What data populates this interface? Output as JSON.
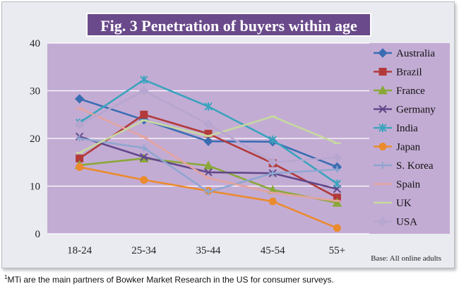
{
  "chart_data": {
    "type": "line",
    "title": "Fig. 3 Penetration of buyers within age",
    "categories": [
      "18-24",
      "25-34",
      "35-44",
      "45-54",
      "55+"
    ],
    "ylim": [
      0,
      40
    ],
    "yticks": [
      0,
      10,
      20,
      30,
      40
    ],
    "grid": true,
    "legend_position": "right",
    "note": "Base: All online adults",
    "series": [
      {
        "name": "Australia",
        "color": "#3b6db3",
        "marker": "diamond",
        "values": [
          28.3,
          23.9,
          19.4,
          19.3,
          14.0
        ]
      },
      {
        "name": "Brazil",
        "color": "#b23a3a",
        "marker": "square",
        "values": [
          15.8,
          25.0,
          21.0,
          14.8,
          7.6
        ]
      },
      {
        "name": "France",
        "color": "#8aa839",
        "marker": "triangle",
        "values": [
          14.4,
          15.8,
          14.3,
          9.2,
          6.5
        ]
      },
      {
        "name": "Germany",
        "color": "#62488a",
        "marker": "x",
        "values": [
          20.4,
          16.1,
          12.9,
          12.7,
          9.4
        ]
      },
      {
        "name": "India",
        "color": "#3ba3bd",
        "marker": "star",
        "values": [
          23.3,
          32.3,
          26.7,
          19.7,
          10.5
        ]
      },
      {
        "name": "Japan",
        "color": "#ea8b2e",
        "marker": "circle",
        "values": [
          14.0,
          11.3,
          9.0,
          6.8,
          1.2
        ]
      },
      {
        "name": "S. Korea",
        "color": "#8ea6d0",
        "marker": "plus",
        "values": [
          20.0,
          18.0,
          8.8,
          12.7,
          13.5
        ]
      },
      {
        "name": "Spain",
        "color": "#e3a39f",
        "marker": "dash",
        "values": [
          26.3,
          20.3,
          11.7,
          8.6,
          6.9
        ]
      },
      {
        "name": "UK",
        "color": "#c6d8a0",
        "marker": "dash",
        "values": [
          17.0,
          23.8,
          20.5,
          24.6,
          19.0
        ]
      },
      {
        "name": "USA",
        "color": "#b7a6cf",
        "marker": "diamond",
        "values": [
          22.9,
          30.0,
          23.0,
          15.0,
          16.0
        ]
      }
    ]
  },
  "footnote": {
    "mark": "1",
    "text": "MTi are the main partners of Bowker Market Research in the US for consumer surveys."
  }
}
